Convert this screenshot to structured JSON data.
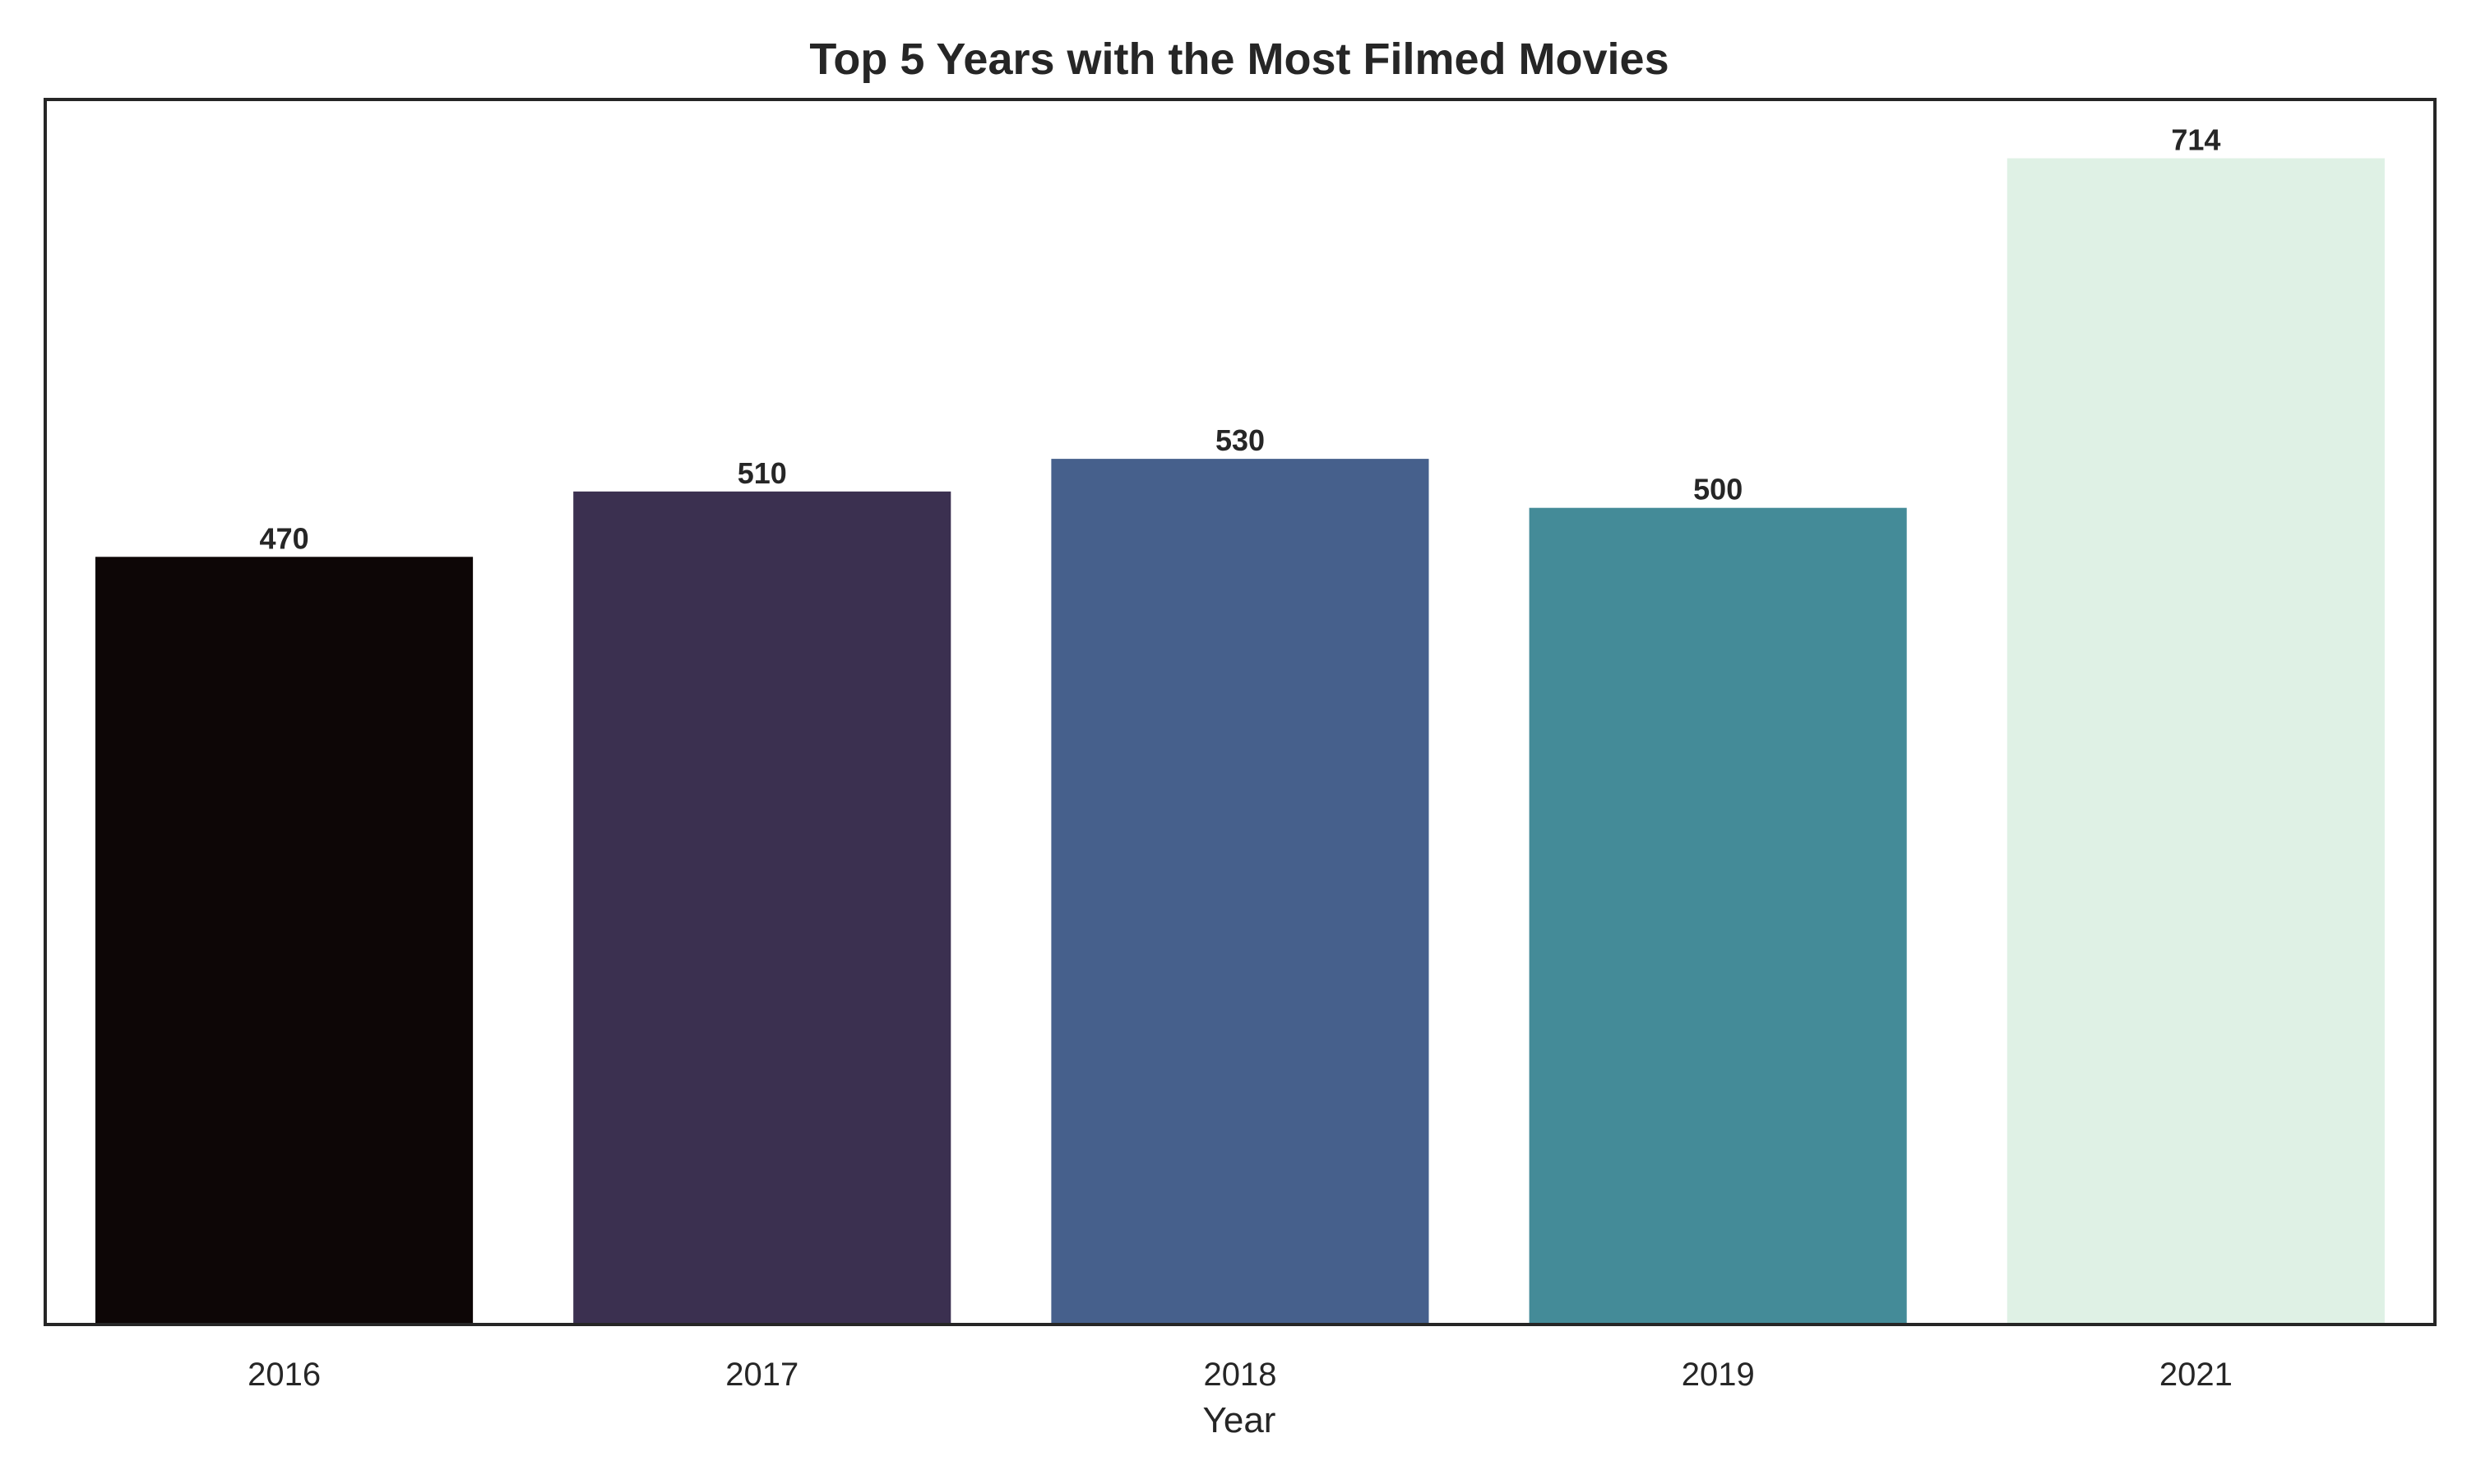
{
  "chart_data": {
    "type": "bar",
    "title": "Top 5 Years with the Most Filmed Movies",
    "xlabel": "Year",
    "ylabel": "",
    "categories": [
      "2016",
      "2017",
      "2018",
      "2019",
      "2021"
    ],
    "values": [
      470,
      510,
      530,
      500,
      714
    ],
    "value_labels": [
      "470",
      "510",
      "530",
      "500",
      "714"
    ],
    "bar_colors": [
      "#0d0606",
      "#3b3050",
      "#46608c",
      "#448b98",
      "#dff1e5"
    ],
    "ylim": [
      0,
      750
    ],
    "y_ticks_visible": false,
    "grid": false,
    "legend": "none"
  }
}
